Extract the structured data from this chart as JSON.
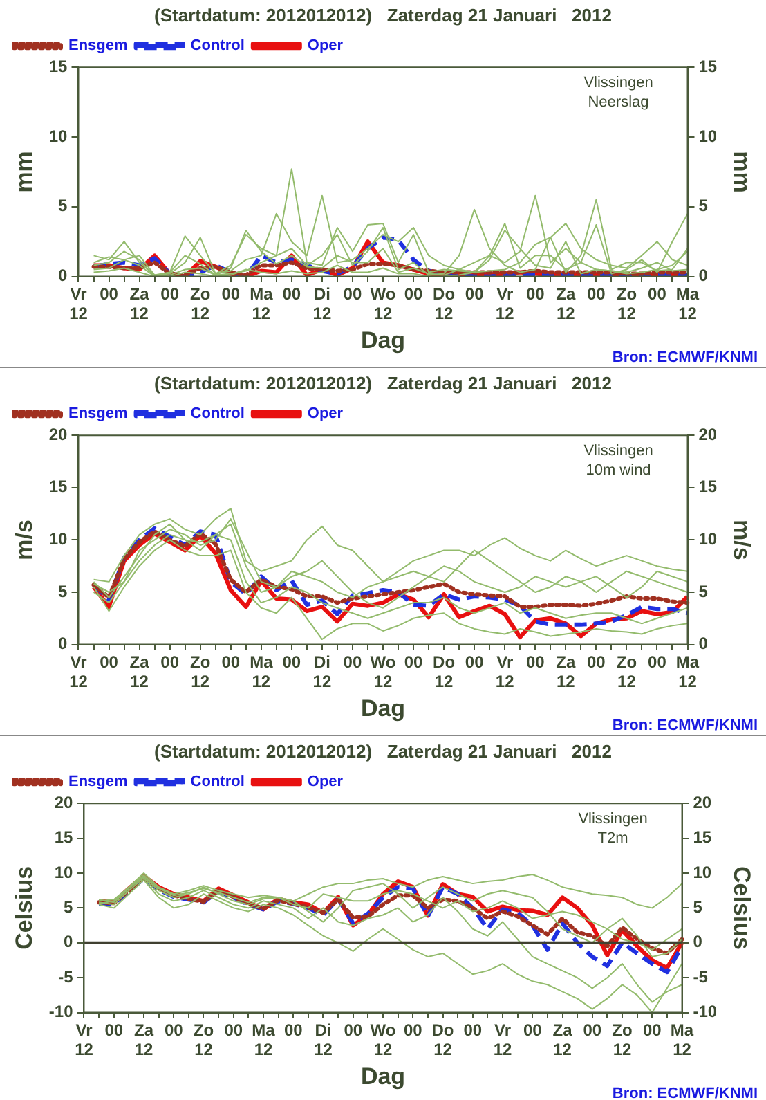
{
  "chart_data": [
    {
      "type": "line",
      "title": "(Startdatum: 2012012012)   Zaterdag 21 Januari   2012",
      "xlabel": "Dag",
      "ylabel": "mm",
      "y2label": "mm",
      "annotations": [
        "Vlissingen",
        "Neerslag",
        "Bron: ECMWF/KNMI"
      ],
      "categories": [
        "Vr 12",
        null,
        "00",
        null,
        "Za 12",
        null,
        "00",
        null,
        "Zo 12",
        null,
        "00",
        null,
        "Ma 12",
        null,
        "00",
        null,
        "Di 12",
        null,
        "00",
        null,
        "Wo 12",
        null,
        "00",
        null,
        "Do 12",
        null,
        "00",
        null,
        "Vr 12",
        null,
        "00",
        null,
        "Za 12",
        null,
        "00",
        null,
        "Zo 12",
        null,
        "00",
        null,
        "Ma 12"
      ],
      "ylim": [
        0,
        15
      ],
      "yticks": [
        0,
        5,
        10,
        15
      ],
      "y2lim": [
        0,
        15
      ],
      "y2ticks": [
        0,
        5,
        10,
        15
      ],
      "grid": false,
      "legend": "top left",
      "marker": "none",
      "series": [
        {
          "color": "#93bb6c",
          "values": [
            null,
            1.5,
            1.2,
            2.5,
            1.0,
            0.1,
            0.3,
            2.9,
            1.5,
            0.2,
            0.8,
            3.0,
            2.0,
            1.5,
            7.7,
            1.0,
            0.8,
            3.5,
            1.8,
            3.7,
            3.8,
            1.0,
            3.0,
            0.3,
            0.5,
            0.4,
            0.3,
            1.2,
            3.3,
            2.0,
            0.8,
            0.6,
            2.5,
            0.2,
            0.5,
            0.4,
            0.3,
            0.6,
            1.0,
            0.4,
            0.5
          ]
        },
        {
          "color": "#93bb6c",
          "values": [
            null,
            1.0,
            1.4,
            1.2,
            1.5,
            0.1,
            0.2,
            1.0,
            2.8,
            0.2,
            0.4,
            1.2,
            1.5,
            4.5,
            2.5,
            1.5,
            5.8,
            1.0,
            1.2,
            2.0,
            3.0,
            2.5,
            3.5,
            1.5,
            0.8,
            0.5,
            0.3,
            1.5,
            1.0,
            1.8,
            5.8,
            1.0,
            2.0,
            1.0,
            0.5,
            0.4,
            0.2,
            0.3,
            0.5,
            0.8,
            1.8
          ]
        },
        {
          "color": "#93bb6c",
          "values": [
            null,
            0.5,
            0.6,
            1.2,
            0.8,
            0,
            0.1,
            0.5,
            0.6,
            0.1,
            0.2,
            0.4,
            1.0,
            1.5,
            2.0,
            0.8,
            1.5,
            3.0,
            0.8,
            1.8,
            3.5,
            0.5,
            1.0,
            0.1,
            0.2,
            1.5,
            4.8,
            2.0,
            0.8,
            0.3,
            0.5,
            2.8,
            0.3,
            1.5,
            5.5,
            0.5,
            1.0,
            1.0,
            0.4,
            0.5,
            2.0
          ]
        },
        {
          "color": "#93bb6c",
          "values": [
            null,
            0.8,
            1.0,
            1.8,
            1.2,
            0,
            0.3,
            1.5,
            0.9,
            0.1,
            0.6,
            3.3,
            1.8,
            0.9,
            1.5,
            0.7,
            0.6,
            1.5,
            1.0,
            1.0,
            2.0,
            0.3,
            0.6,
            0.2,
            0.1,
            0.5,
            1.0,
            1.5,
            3.8,
            0.6,
            1.5,
            1.5,
            0.5,
            1.0,
            3.7,
            0.2,
            0.5,
            1.2,
            0.3,
            2.5,
            4.5
          ]
        },
        {
          "color": "#93bb6c",
          "values": [
            null,
            0.3,
            0.4,
            0.6,
            0.3,
            0,
            0,
            0.3,
            0.2,
            0,
            0.1,
            0.5,
            0.3,
            0.2,
            0.4,
            0.2,
            0.3,
            0.8,
            0.3,
            0.3,
            0.6,
            0.2,
            0.2,
            0,
            0,
            0.1,
            0.3,
            0.4,
            0.5,
            1.0,
            2.3,
            2.8,
            3.8,
            2.0,
            1.2,
            0.8,
            0.6,
            1.5,
            2.5,
            1.2,
            0.8
          ]
        },
        {
          "name": "Ensgem",
          "color": "#a03020",
          "line_style": "dotted",
          "values": [
            null,
            0.7,
            0.7,
            0.6,
            0.6,
            1.0,
            0.2,
            0.1,
            0.6,
            0.7,
            0.3,
            0.1,
            0.8,
            0.8,
            1.0,
            0.6,
            0.5,
            0.4,
            0.5,
            0.9,
            0.9,
            0.8,
            0.5,
            0.4,
            0.3,
            0.3,
            0.3,
            0.3,
            0.3,
            0.3,
            0.4,
            0.3,
            0.3,
            0.3,
            0.3,
            0.3,
            0.2,
            0.2,
            0.3,
            0.3,
            0.3
          ]
        },
        {
          "name": "Control",
          "color": "#2030e0",
          "line_style": "dashed",
          "values": [
            null,
            0.7,
            0.9,
            1.0,
            0.8,
            1.3,
            0.2,
            0,
            0.3,
            0.8,
            0.3,
            0,
            1.5,
            1.0,
            1.2,
            0.8,
            0.4,
            0.2,
            0.7,
            2.0,
            2.8,
            2.6,
            1.2,
            0.4,
            0.2,
            0.1,
            0,
            0,
            0.1,
            0.1,
            0.1,
            0.1,
            0.1,
            0.1,
            0.1,
            0.1,
            0.1,
            0.1,
            0.1,
            0.1,
            0.1
          ]
        },
        {
          "name": "Oper",
          "color": "#e81010",
          "line_style": "solid",
          "values": [
            null,
            0.8,
            0.8,
            0.6,
            0.5,
            1.5,
            0.2,
            0,
            1.1,
            0.7,
            0.2,
            0,
            0.4,
            0.3,
            1.5,
            0.1,
            0.5,
            0.1,
            0.6,
            2.5,
            1.0,
            0.8,
            0.5,
            0.2,
            0.1,
            0.1,
            0.1,
            0.1,
            0.2,
            0.3,
            0.2,
            0.1,
            0.1,
            0.1,
            0.1,
            0.1,
            0.1,
            0.1,
            0.1,
            0.1,
            0.1
          ]
        }
      ]
    },
    {
      "type": "line",
      "title": "(Startdatum: 2012012012)   Zaterdag 21 Januari   2012",
      "xlabel": "Dag",
      "ylabel": "m/s",
      "y2label": "m/s",
      "annotations": [
        "Vlissingen",
        "10m wind",
        "Bron: ECMWF/KNMI"
      ],
      "categories": [
        "Vr 12",
        null,
        "00",
        null,
        "Za 12",
        null,
        "00",
        null,
        "Zo 12",
        null,
        "00",
        null,
        "Ma 12",
        null,
        "00",
        null,
        "Di 12",
        null,
        "00",
        null,
        "Wo 12",
        null,
        "00",
        null,
        "Do 12",
        null,
        "00",
        null,
        "Vr 12",
        null,
        "00",
        null,
        "Za 12",
        null,
        "00",
        null,
        "Zo 12",
        null,
        "00",
        null,
        "Ma 12"
      ],
      "ylim": [
        0,
        20
      ],
      "yticks": [
        0,
        5,
        10,
        15,
        20
      ],
      "y2lim": [
        0,
        20
      ],
      "y2ticks": [
        0,
        5,
        10,
        15,
        20
      ],
      "grid": false,
      "legend": "top left",
      "marker": "none",
      "series": [
        {
          "color": "#93bb6c",
          "values": [
            null,
            6.2,
            6.0,
            8.5,
            10.5,
            11.5,
            12.0,
            11.0,
            10.5,
            12.0,
            13.0,
            8.0,
            7.0,
            7.5,
            8.0,
            10.0,
            11.3,
            9.5,
            9.0,
            7.5,
            6.0,
            7.0,
            8.0,
            8.5,
            9.0,
            9.0,
            8.5,
            9.5,
            10.2,
            9.2,
            8.5,
            8.0,
            9.0,
            8.2,
            7.5,
            8.0,
            8.5,
            8.0,
            7.5,
            7.2,
            7.0
          ]
        },
        {
          "color": "#93bb6c",
          "values": [
            null,
            5.5,
            3.2,
            5.5,
            7.5,
            9.0,
            10.0,
            9.0,
            8.5,
            8.5,
            9.0,
            5.0,
            3.5,
            3.0,
            4.5,
            2.5,
            0.5,
            1.5,
            2.0,
            2.0,
            1.3,
            1.8,
            2.5,
            2.8,
            3.0,
            2.0,
            1.5,
            1.2,
            1.0,
            1.5,
            1.2,
            0.8,
            1.0,
            1.2,
            1.5,
            1.3,
            1.2,
            1.0,
            1.5,
            1.8,
            2.0
          ]
        },
        {
          "color": "#93bb6c",
          "values": [
            null,
            6.0,
            4.5,
            6.5,
            8.5,
            10.5,
            11.5,
            10.0,
            9.0,
            10.5,
            11.5,
            7.5,
            5.0,
            5.5,
            6.5,
            7.0,
            8.0,
            6.5,
            5.0,
            4.0,
            3.5,
            4.5,
            5.5,
            6.5,
            7.5,
            7.0,
            6.0,
            5.5,
            5.0,
            5.5,
            6.5,
            6.0,
            5.5,
            6.0,
            6.5,
            5.5,
            4.5,
            5.5,
            7.0,
            6.5,
            6.0
          ]
        },
        {
          "color": "#93bb6c",
          "values": [
            null,
            5.8,
            5.0,
            6.0,
            8.0,
            9.5,
            10.5,
            10.0,
            9.8,
            10.5,
            10.0,
            6.0,
            4.0,
            4.5,
            5.5,
            5.0,
            4.0,
            3.5,
            3.0,
            2.5,
            3.0,
            3.5,
            4.0,
            4.0,
            4.5,
            3.5,
            3.0,
            3.5,
            4.0,
            3.0,
            3.5,
            3.0,
            2.5,
            2.8,
            3.0,
            3.0,
            2.5,
            2.0,
            2.5,
            3.0,
            3.5
          ]
        },
        {
          "color": "#93bb6c",
          "values": [
            null,
            5.0,
            4.0,
            6.0,
            9.0,
            10.0,
            11.0,
            10.5,
            9.5,
            10.0,
            12.0,
            9.0,
            6.0,
            5.5,
            7.0,
            6.5,
            6.0,
            5.0,
            4.5,
            5.5,
            6.0,
            6.5,
            7.0,
            6.5,
            6.0,
            7.5,
            9.0,
            8.0,
            7.0,
            6.0,
            5.0,
            5.5,
            6.5,
            6.0,
            5.0,
            6.0,
            7.0,
            6.5,
            6.0,
            5.5,
            5.0
          ]
        },
        {
          "name": "Ensgem",
          "color": "#a03020",
          "line_style": "dotted",
          "values": [
            null,
            5.7,
            4.5,
            8.2,
            9.8,
            10.8,
            10.0,
            9.4,
            10.6,
            9.6,
            6.2,
            5.0,
            6.2,
            5.5,
            5.3,
            4.6,
            4.6,
            4.0,
            4.4,
            4.6,
            4.8,
            5.0,
            5.2,
            5.5,
            5.8,
            5.0,
            4.8,
            4.7,
            4.6,
            3.6,
            3.6,
            3.8,
            3.8,
            3.7,
            3.9,
            4.2,
            4.6,
            4.4,
            4.4,
            4.1,
            4.0
          ]
        },
        {
          "name": "Control",
          "color": "#2030e0",
          "line_style": "dashed",
          "values": [
            null,
            5.7,
            4.3,
            8.3,
            10.0,
            11.1,
            10.3,
            9.5,
            10.8,
            10.5,
            6.0,
            4.8,
            6.5,
            5.2,
            6.1,
            3.8,
            4.2,
            2.9,
            4.7,
            4.9,
            5.2,
            5.0,
            3.8,
            3.7,
            4.8,
            4.3,
            4.6,
            4.5,
            4.3,
            3.7,
            2.2,
            1.9,
            1.9,
            1.9,
            2.0,
            2.2,
            2.8,
            3.6,
            3.4,
            3.4,
            3.0
          ]
        },
        {
          "name": "Oper",
          "color": "#e81010",
          "line_style": "solid",
          "values": [
            null,
            5.5,
            3.6,
            8.0,
            9.5,
            10.6,
            9.8,
            9.0,
            10.4,
            8.7,
            5.2,
            3.6,
            6.1,
            4.4,
            4.3,
            3.2,
            3.6,
            2.2,
            3.9,
            3.7,
            4.0,
            4.8,
            4.3,
            2.6,
            4.8,
            2.6,
            3.2,
            3.7,
            2.9,
            0.7,
            2.3,
            2.5,
            2.0,
            0.8,
            2.0,
            2.4,
            2.5,
            3.2,
            2.9,
            3.1,
            4.6
          ]
        }
      ]
    },
    {
      "type": "line",
      "title": "(Startdatum: 2012012012)   Zaterdag 21 Januari   2012",
      "xlabel": "Dag",
      "ylabel": "Celsius",
      "y2label": "Celsius",
      "annotations": [
        "Vlissingen",
        "T2m",
        "Bron: ECMWF/KNMI"
      ],
      "categories": [
        "Vr 12",
        null,
        "00",
        null,
        "Za 12",
        null,
        "00",
        null,
        "Zo 12",
        null,
        "00",
        null,
        "Ma 12",
        null,
        "00",
        null,
        "Di 12",
        null,
        "00",
        null,
        "Wo 12",
        null,
        "00",
        null,
        "Do 12",
        null,
        "00",
        null,
        "Vr 12",
        null,
        "00",
        null,
        "Za 12",
        null,
        "00",
        null,
        "Zo 12",
        null,
        "00",
        null,
        "Ma 12"
      ],
      "ylim": [
        -10,
        20
      ],
      "yticks": [
        -10,
        -5,
        0,
        5,
        10,
        15,
        20
      ],
      "y2lim": [
        -10,
        20
      ],
      "y2ticks": [
        -10,
        -5,
        0,
        5,
        10,
        15,
        20
      ],
      "grid": false,
      "legend": "top left",
      "marker": "none",
      "ref_lines": [
        {
          "axis": "y",
          "value": 0,
          "color": "#404030"
        }
      ],
      "series": [
        {
          "color": "#93bb6c",
          "values": [
            null,
            6.0,
            6.2,
            8.0,
            10.0,
            8.0,
            7.0,
            7.5,
            8.2,
            7.5,
            7.0,
            6.5,
            6.8,
            6.5,
            6.0,
            7.0,
            8.0,
            8.5,
            8.5,
            9.0,
            9.2,
            8.5,
            8.0,
            9.0,
            9.5,
            9.0,
            8.5,
            8.8,
            9.0,
            9.5,
            9.8,
            9.0,
            8.0,
            7.5,
            7.0,
            6.8,
            6.5,
            5.5,
            5.0,
            6.5,
            8.5
          ]
        },
        {
          "color": "#93bb6c",
          "values": [
            null,
            5.5,
            5.0,
            7.0,
            9.0,
            6.5,
            5.0,
            5.5,
            7.0,
            6.0,
            5.0,
            4.5,
            5.5,
            5.0,
            4.0,
            2.5,
            1.0,
            0.0,
            -1.2,
            0.5,
            2.0,
            0.5,
            -1.0,
            -2.0,
            -1.5,
            -3.0,
            -4.5,
            -4.0,
            -3.0,
            -4.5,
            -5.5,
            -6.0,
            -7.0,
            -8.0,
            -9.5,
            -8.0,
            -6.0,
            -7.5,
            -10.0,
            -6.5,
            -3.0
          ]
        },
        {
          "color": "#93bb6c",
          "values": [
            null,
            5.8,
            5.5,
            7.5,
            9.3,
            7.0,
            6.0,
            6.5,
            7.5,
            6.5,
            5.5,
            5.0,
            6.0,
            5.5,
            5.0,
            3.5,
            5.0,
            3.0,
            2.5,
            3.5,
            4.0,
            5.0,
            3.0,
            4.0,
            6.5,
            4.5,
            2.0,
            1.0,
            3.0,
            0.5,
            -2.0,
            -3.0,
            -4.0,
            -5.0,
            -6.5,
            -5.0,
            -3.0,
            -6.0,
            -8.5,
            -7.0,
            -6.0
          ]
        },
        {
          "color": "#93bb6c",
          "values": [
            null,
            6.2,
            5.8,
            7.8,
            9.5,
            7.5,
            6.5,
            7.0,
            8.0,
            7.0,
            6.0,
            5.5,
            6.3,
            6.5,
            5.5,
            5.0,
            7.0,
            6.5,
            6.0,
            6.0,
            7.0,
            7.5,
            7.0,
            6.0,
            5.0,
            6.0,
            4.5,
            5.0,
            6.0,
            5.0,
            3.5,
            4.0,
            4.5,
            4.0,
            3.0,
            2.0,
            0.5,
            0.0,
            -1.0,
            0.5,
            2.0
          ]
        },
        {
          "color": "#93bb6c",
          "values": [
            null,
            5.6,
            6.0,
            8.0,
            9.7,
            7.8,
            6.8,
            7.2,
            7.8,
            7.2,
            6.5,
            5.8,
            6.5,
            6.5,
            6.0,
            4.5,
            3.0,
            5.0,
            7.5,
            8.0,
            8.5,
            7.0,
            5.0,
            6.5,
            8.0,
            7.0,
            6.0,
            7.0,
            7.5,
            7.0,
            6.5,
            4.5,
            2.0,
            1.0,
            0.0,
            2.0,
            3.5,
            1.0,
            -2.0,
            -1.5,
            0.5
          ]
        },
        {
          "name": "Ensgem",
          "color": "#a03020",
          "line_style": "dotted",
          "values": [
            null,
            5.8,
            5.7,
            7.5,
            9.3,
            7.8,
            6.8,
            6.3,
            5.9,
            7.5,
            6.6,
            5.6,
            4.9,
            6.1,
            5.6,
            5.1,
            4.3,
            6.2,
            3.6,
            3.8,
            5.5,
            6.8,
            6.8,
            5.0,
            6.2,
            6.0,
            5.0,
            3.5,
            4.5,
            3.8,
            2.5,
            1.2,
            3.5,
            1.5,
            1.0,
            -0.5,
            2.2,
            0.5,
            -0.8,
            -1.5,
            0.5
          ]
        },
        {
          "name": "Control",
          "color": "#2030e0",
          "line_style": "dashed",
          "values": [
            null,
            5.6,
            5.6,
            7.4,
            9.2,
            7.6,
            6.6,
            6.2,
            5.8,
            7.4,
            6.5,
            5.5,
            4.8,
            6.0,
            5.6,
            5.0,
            4.0,
            6.3,
            2.8,
            4.2,
            6.5,
            8.0,
            7.8,
            3.8,
            8.0,
            7.0,
            5.0,
            2.0,
            4.8,
            4.3,
            2.5,
            -1.0,
            2.8,
            0.0,
            -2.0,
            -3.3,
            0.0,
            -1.5,
            -3.0,
            -4.2,
            -0.5
          ]
        },
        {
          "name": "Oper",
          "color": "#e81010",
          "line_style": "solid",
          "values": [
            null,
            6.0,
            5.8,
            7.8,
            9.6,
            8.0,
            7.0,
            6.5,
            6.0,
            7.8,
            6.8,
            5.8,
            4.8,
            6.3,
            5.8,
            5.5,
            4.3,
            6.6,
            2.5,
            4.0,
            7.0,
            8.8,
            8.0,
            3.9,
            8.4,
            7.0,
            6.6,
            4.5,
            5.2,
            4.7,
            4.6,
            4.0,
            6.5,
            5.0,
            2.5,
            -1.8,
            1.8,
            -0.5,
            -2.5,
            -3.6,
            0.0
          ]
        }
      ]
    }
  ]
}
